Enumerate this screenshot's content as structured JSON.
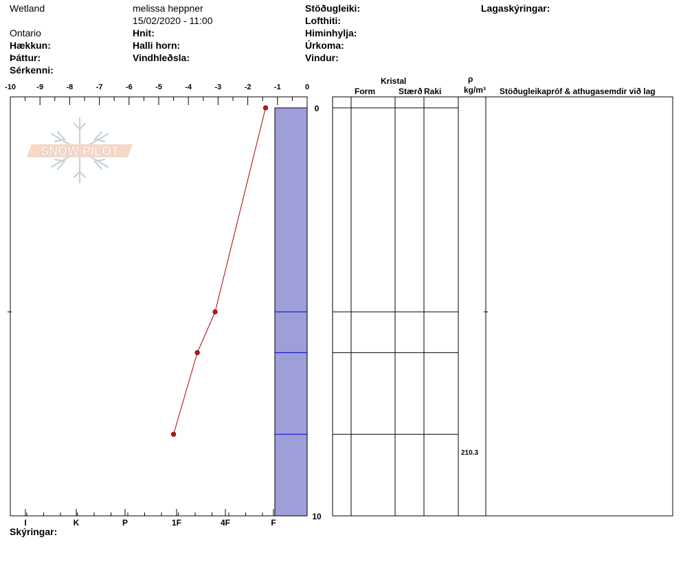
{
  "header": {
    "location": "Wetland",
    "observer": "melissa heppner",
    "datetime": "15/02/2020 - 11:00",
    "region": "Ontario",
    "labels": {
      "elevation": "Hækkun:",
      "aspect": "Þáttur:",
      "features": "Sérkenni:",
      "coords": "Hnit:",
      "slope": "Halli horn:",
      "wind_loading": "Vindhleðsla:",
      "stability": "Stöðugleiki:",
      "air_temp": "Lofthiti:",
      "sky": "Himinhylja:",
      "precip": "Úrkoma:",
      "wind": "Vindur:",
      "layer_notes": "Lagaskýringar:"
    }
  },
  "logo": {
    "text": "SNOW PILOT"
  },
  "table": {
    "crystal_header": "Kristal",
    "form_header": "Form",
    "size_header": "Stærð",
    "moisture_header": "Raki",
    "rho_header": "ρ",
    "density_unit": "kg/m³",
    "comments_header": "Stöðugleikapróf & athugasemdir við lag",
    "density_values": [
      {
        "depth": 8.3,
        "value": "210.3"
      }
    ]
  },
  "footer": {
    "notes_label": "Skýringar:"
  },
  "colors": {
    "temp_line": "#aa0000",
    "hardness_fill": "#9e9ed8",
    "layer_line": "#0000cc"
  },
  "chart_data": {
    "type": "line",
    "temperature_axis": {
      "ticks": [
        -10,
        -9,
        -8,
        -7,
        -6,
        -5,
        -4,
        -3,
        -2,
        -1,
        0
      ],
      "range": [
        -10,
        0
      ]
    },
    "depth_axis": {
      "ticks": [
        0,
        10
      ],
      "range": [
        0,
        10
      ]
    },
    "hardness_axis": {
      "ticks": [
        "I",
        "K",
        "P",
        "1F",
        "4F",
        "F"
      ]
    },
    "temperature_profile": [
      {
        "temp": -1.4,
        "depth": 0
      },
      {
        "temp": -3.1,
        "depth": 5
      },
      {
        "temp": -3.7,
        "depth": 6
      },
      {
        "temp": -4.5,
        "depth": 8
      }
    ],
    "layer_boundaries": [
      0,
      5,
      6,
      8,
      10
    ],
    "hardness_layer": {
      "top": 0,
      "bottom": 10,
      "hardness": "F"
    }
  }
}
